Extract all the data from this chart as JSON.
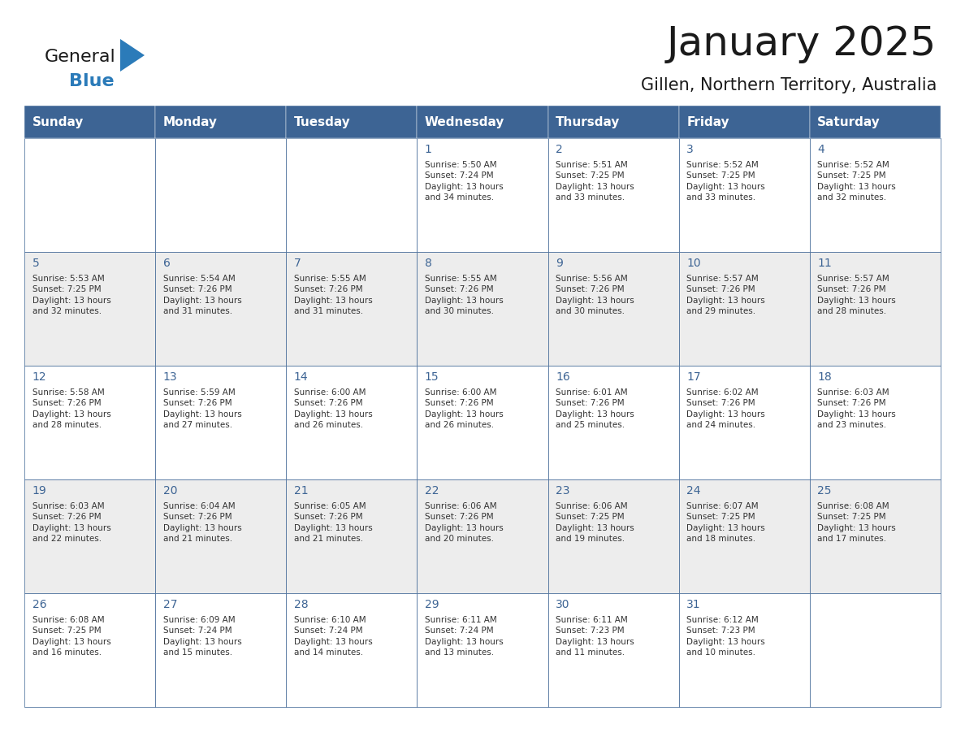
{
  "title": "January 2025",
  "subtitle": "Gillen, Northern Territory, Australia",
  "header_bg_color": "#3D6494",
  "header_text_color": "#FFFFFF",
  "cell_bg_white": "#FFFFFF",
  "cell_bg_gray": "#EDEDED",
  "border_color": "#3D6494",
  "text_color": "#333333",
  "day_number_color": "#3D6494",
  "day_headers": [
    "Sunday",
    "Monday",
    "Tuesday",
    "Wednesday",
    "Thursday",
    "Friday",
    "Saturday"
  ],
  "weeks": [
    [
      {
        "day": "",
        "info": ""
      },
      {
        "day": "",
        "info": ""
      },
      {
        "day": "",
        "info": ""
      },
      {
        "day": "1",
        "info": "Sunrise: 5:50 AM\nSunset: 7:24 PM\nDaylight: 13 hours\nand 34 minutes."
      },
      {
        "day": "2",
        "info": "Sunrise: 5:51 AM\nSunset: 7:25 PM\nDaylight: 13 hours\nand 33 minutes."
      },
      {
        "day": "3",
        "info": "Sunrise: 5:52 AM\nSunset: 7:25 PM\nDaylight: 13 hours\nand 33 minutes."
      },
      {
        "day": "4",
        "info": "Sunrise: 5:52 AM\nSunset: 7:25 PM\nDaylight: 13 hours\nand 32 minutes."
      }
    ],
    [
      {
        "day": "5",
        "info": "Sunrise: 5:53 AM\nSunset: 7:25 PM\nDaylight: 13 hours\nand 32 minutes."
      },
      {
        "day": "6",
        "info": "Sunrise: 5:54 AM\nSunset: 7:26 PM\nDaylight: 13 hours\nand 31 minutes."
      },
      {
        "day": "7",
        "info": "Sunrise: 5:55 AM\nSunset: 7:26 PM\nDaylight: 13 hours\nand 31 minutes."
      },
      {
        "day": "8",
        "info": "Sunrise: 5:55 AM\nSunset: 7:26 PM\nDaylight: 13 hours\nand 30 minutes."
      },
      {
        "day": "9",
        "info": "Sunrise: 5:56 AM\nSunset: 7:26 PM\nDaylight: 13 hours\nand 30 minutes."
      },
      {
        "day": "10",
        "info": "Sunrise: 5:57 AM\nSunset: 7:26 PM\nDaylight: 13 hours\nand 29 minutes."
      },
      {
        "day": "11",
        "info": "Sunrise: 5:57 AM\nSunset: 7:26 PM\nDaylight: 13 hours\nand 28 minutes."
      }
    ],
    [
      {
        "day": "12",
        "info": "Sunrise: 5:58 AM\nSunset: 7:26 PM\nDaylight: 13 hours\nand 28 minutes."
      },
      {
        "day": "13",
        "info": "Sunrise: 5:59 AM\nSunset: 7:26 PM\nDaylight: 13 hours\nand 27 minutes."
      },
      {
        "day": "14",
        "info": "Sunrise: 6:00 AM\nSunset: 7:26 PM\nDaylight: 13 hours\nand 26 minutes."
      },
      {
        "day": "15",
        "info": "Sunrise: 6:00 AM\nSunset: 7:26 PM\nDaylight: 13 hours\nand 26 minutes."
      },
      {
        "day": "16",
        "info": "Sunrise: 6:01 AM\nSunset: 7:26 PM\nDaylight: 13 hours\nand 25 minutes."
      },
      {
        "day": "17",
        "info": "Sunrise: 6:02 AM\nSunset: 7:26 PM\nDaylight: 13 hours\nand 24 minutes."
      },
      {
        "day": "18",
        "info": "Sunrise: 6:03 AM\nSunset: 7:26 PM\nDaylight: 13 hours\nand 23 minutes."
      }
    ],
    [
      {
        "day": "19",
        "info": "Sunrise: 6:03 AM\nSunset: 7:26 PM\nDaylight: 13 hours\nand 22 minutes."
      },
      {
        "day": "20",
        "info": "Sunrise: 6:04 AM\nSunset: 7:26 PM\nDaylight: 13 hours\nand 21 minutes."
      },
      {
        "day": "21",
        "info": "Sunrise: 6:05 AM\nSunset: 7:26 PM\nDaylight: 13 hours\nand 21 minutes."
      },
      {
        "day": "22",
        "info": "Sunrise: 6:06 AM\nSunset: 7:26 PM\nDaylight: 13 hours\nand 20 minutes."
      },
      {
        "day": "23",
        "info": "Sunrise: 6:06 AM\nSunset: 7:25 PM\nDaylight: 13 hours\nand 19 minutes."
      },
      {
        "day": "24",
        "info": "Sunrise: 6:07 AM\nSunset: 7:25 PM\nDaylight: 13 hours\nand 18 minutes."
      },
      {
        "day": "25",
        "info": "Sunrise: 6:08 AM\nSunset: 7:25 PM\nDaylight: 13 hours\nand 17 minutes."
      }
    ],
    [
      {
        "day": "26",
        "info": "Sunrise: 6:08 AM\nSunset: 7:25 PM\nDaylight: 13 hours\nand 16 minutes."
      },
      {
        "day": "27",
        "info": "Sunrise: 6:09 AM\nSunset: 7:24 PM\nDaylight: 13 hours\nand 15 minutes."
      },
      {
        "day": "28",
        "info": "Sunrise: 6:10 AM\nSunset: 7:24 PM\nDaylight: 13 hours\nand 14 minutes."
      },
      {
        "day": "29",
        "info": "Sunrise: 6:11 AM\nSunset: 7:24 PM\nDaylight: 13 hours\nand 13 minutes."
      },
      {
        "day": "30",
        "info": "Sunrise: 6:11 AM\nSunset: 7:23 PM\nDaylight: 13 hours\nand 11 minutes."
      },
      {
        "day": "31",
        "info": "Sunrise: 6:12 AM\nSunset: 7:23 PM\nDaylight: 13 hours\nand 10 minutes."
      },
      {
        "day": "",
        "info": ""
      }
    ]
  ],
  "logo_color_general": "#1a1a1a",
  "logo_color_blue": "#2B7BB9",
  "logo_triangle_color": "#2B7BB9",
  "title_fontsize": 36,
  "subtitle_fontsize": 15,
  "header_fontsize": 11,
  "day_number_fontsize": 10,
  "cell_text_fontsize": 7.5
}
